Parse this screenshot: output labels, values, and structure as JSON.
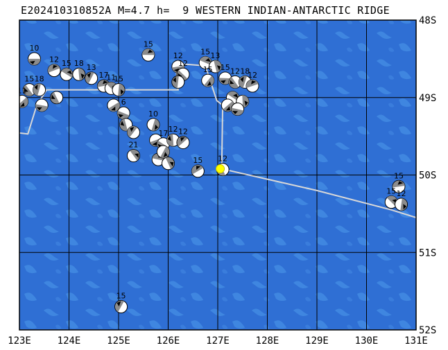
{
  "header": {
    "event_id": "E202410310852A",
    "magnitude_text": "M=4.7",
    "depth_text": "h=  9",
    "region": "WESTERN INDIAN-ANTARCTIC RIDGE"
  },
  "map": {
    "lon_range": [
      123,
      131
    ],
    "lat_range": [
      -52,
      -48
    ],
    "lon_ticks": [
      "123E",
      "124E",
      "125E",
      "126E",
      "127E",
      "128E",
      "129E",
      "130E",
      "131E"
    ],
    "lat_ticks": [
      "48S",
      "49S",
      "50S",
      "51S",
      "52S"
    ],
    "colors": {
      "ocean": "#2f6fd4",
      "ocean_light": "#3f86e0",
      "grid": "#000000",
      "plate_boundary": "#d8d8d8",
      "event_star": "#ffff00"
    },
    "current_event": {
      "lon": 127.05,
      "lat": -49.92
    },
    "plate_boundary": [
      [
        122.9,
        -49.45
      ],
      [
        123.17,
        -49.47
      ],
      [
        123.35,
        -49.1
      ],
      [
        123.55,
        -48.9
      ],
      [
        126.2,
        -48.9
      ],
      [
        126.15,
        -48.56
      ],
      [
        126.75,
        -48.59
      ],
      [
        126.98,
        -49.04
      ],
      [
        127.1,
        -49.1
      ],
      [
        127.08,
        -49.92
      ],
      [
        129.0,
        -50.2
      ],
      [
        130.5,
        -50.45
      ],
      [
        131.1,
        -50.57
      ]
    ],
    "mechanisms": [
      {
        "lon": 123.3,
        "lat": -48.5,
        "depth": "10"
      },
      {
        "lon": 123.2,
        "lat": -48.9,
        "depth": "15"
      },
      {
        "lon": 123.4,
        "lat": -48.9,
        "depth": "18"
      },
      {
        "lon": 123.7,
        "lat": -48.65,
        "depth": "12"
      },
      {
        "lon": 123.95,
        "lat": -48.7,
        "depth": "15"
      },
      {
        "lon": 124.2,
        "lat": -48.7,
        "depth": "18"
      },
      {
        "lon": 123.05,
        "lat": -49.05,
        "depth": "11"
      },
      {
        "lon": 123.45,
        "lat": -49.1,
        "depth": ""
      },
      {
        "lon": 123.75,
        "lat": -49.0,
        "depth": ""
      },
      {
        "lon": 124.45,
        "lat": -48.75,
        "depth": "13"
      },
      {
        "lon": 124.7,
        "lat": -48.85,
        "depth": "17"
      },
      {
        "lon": 124.85,
        "lat": -48.88,
        "depth": "11"
      },
      {
        "lon": 125.0,
        "lat": -48.9,
        "depth": "15"
      },
      {
        "lon": 124.9,
        "lat": -49.1,
        "depth": ""
      },
      {
        "lon": 125.1,
        "lat": -49.2,
        "depth": "6"
      },
      {
        "lon": 125.15,
        "lat": -49.35,
        "depth": ""
      },
      {
        "lon": 125.3,
        "lat": -49.45,
        "depth": ""
      },
      {
        "lon": 125.6,
        "lat": -48.45,
        "depth": "15"
      },
      {
        "lon": 125.3,
        "lat": -49.75,
        "depth": "21"
      },
      {
        "lon": 125.7,
        "lat": -49.35,
        "depth": "10"
      },
      {
        "lon": 125.75,
        "lat": -49.55,
        "depth": ""
      },
      {
        "lon": 125.9,
        "lat": -49.6,
        "depth": "17"
      },
      {
        "lon": 126.1,
        "lat": -49.55,
        "depth": "12"
      },
      {
        "lon": 126.3,
        "lat": -49.58,
        "depth": "12"
      },
      {
        "lon": 125.8,
        "lat": -49.8,
        "depth": ""
      },
      {
        "lon": 126.0,
        "lat": -49.85,
        "depth": ""
      },
      {
        "lon": 125.9,
        "lat": -49.7,
        "depth": ""
      },
      {
        "lon": 126.2,
        "lat": -48.6,
        "depth": "12"
      },
      {
        "lon": 126.3,
        "lat": -48.7,
        "depth": "12"
      },
      {
        "lon": 126.2,
        "lat": -48.8,
        "depth": ""
      },
      {
        "lon": 126.6,
        "lat": -49.95,
        "depth": "15"
      },
      {
        "lon": 126.75,
        "lat": -48.55,
        "depth": "15"
      },
      {
        "lon": 126.95,
        "lat": -48.6,
        "depth": "13"
      },
      {
        "lon": 126.8,
        "lat": -48.78,
        "depth": "15"
      },
      {
        "lon": 127.15,
        "lat": -48.75,
        "depth": "15"
      },
      {
        "lon": 127.35,
        "lat": -48.8,
        "depth": "12"
      },
      {
        "lon": 127.55,
        "lat": -48.8,
        "depth": "18"
      },
      {
        "lon": 127.7,
        "lat": -48.85,
        "depth": "12"
      },
      {
        "lon": 127.3,
        "lat": -49.0,
        "depth": ""
      },
      {
        "lon": 127.5,
        "lat": -49.05,
        "depth": ""
      },
      {
        "lon": 127.2,
        "lat": -49.1,
        "depth": ""
      },
      {
        "lon": 127.4,
        "lat": -49.15,
        "depth": ""
      },
      {
        "lon": 127.1,
        "lat": -49.93,
        "depth": "12"
      },
      {
        "lon": 125.05,
        "lat": -51.7,
        "depth": "15"
      },
      {
        "lon": 130.65,
        "lat": -50.15,
        "depth": "15"
      },
      {
        "lon": 130.5,
        "lat": -50.35,
        "depth": "15"
      },
      {
        "lon": 130.7,
        "lat": -50.38,
        "depth": "12"
      }
    ]
  }
}
